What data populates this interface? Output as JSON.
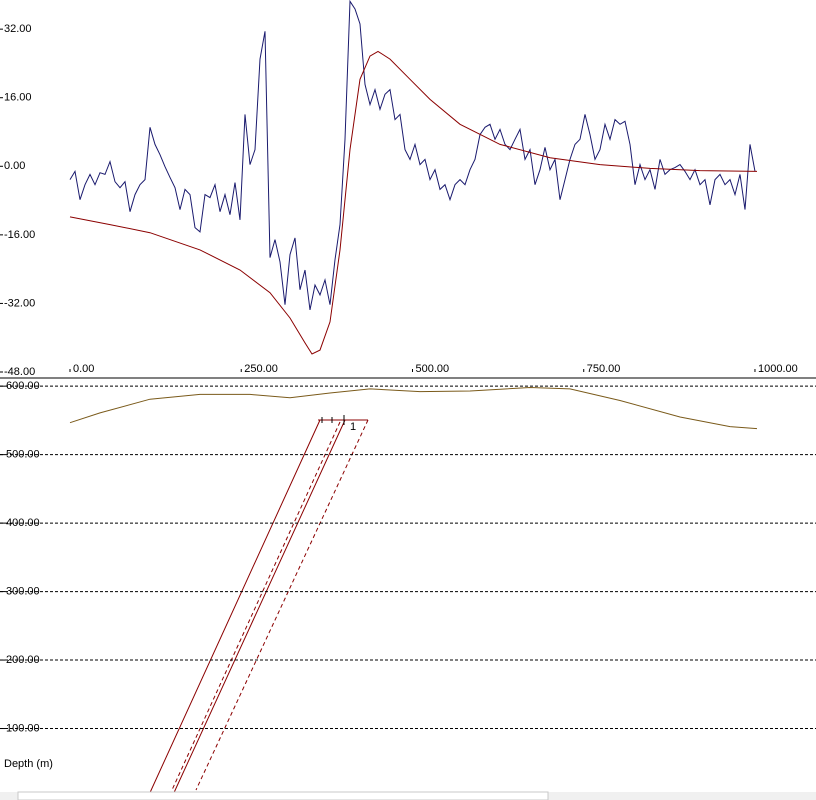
{
  "chart_data": [
    {
      "type": "line",
      "xlim": [
        -102.2,
        1089.1
      ],
      "ylim": [
        -48,
        38.8
      ],
      "xticks": [
        {
          "value": 0,
          "label": "0.00"
        },
        {
          "value": 250,
          "label": "250.00"
        },
        {
          "value": 500,
          "label": "500.00"
        },
        {
          "value": 750,
          "label": "750.00"
        },
        {
          "value": 1000,
          "label": "1000.00"
        }
      ],
      "yticks": [
        {
          "value": 32,
          "label": "32.00"
        },
        {
          "value": 16,
          "label": "16.00"
        },
        {
          "value": 0,
          "label": "0.00"
        },
        {
          "value": -16,
          "label": "-16.00"
        },
        {
          "value": -32,
          "label": "-32.00"
        },
        {
          "value": -48,
          "label": "-48.00"
        }
      ],
      "series": [
        {
          "color": "#1a1a6e",
          "x": [
            0,
            7.3,
            14.6,
            21.9,
            29.2,
            36.5,
            43.8,
            51.1,
            58.4,
            65.7,
            73,
            80.3,
            87.6,
            94.9,
            102.2,
            109.5,
            116.8,
            124.1,
            131.4,
            138.7,
            146,
            153.3,
            160.6,
            167.9,
            175.2,
            182.5,
            189.8,
            197.1,
            204.4,
            211.7,
            219,
            226.3,
            233.6,
            240.9,
            248.2,
            255.5,
            262.8,
            270.1,
            277.4,
            284.7,
            292,
            299.3,
            306.6,
            313.9,
            321.2,
            328.5,
            335.8,
            343.1,
            350.4,
            357.7,
            365,
            372.3,
            379.6,
            386.9,
            394.2,
            401.5,
            408.8,
            416.1,
            423.4,
            430.7,
            438,
            445.3,
            452.6,
            459.9,
            467.2,
            474.5,
            481.8,
            489.1,
            496.4,
            503.7,
            511,
            518.3,
            525.6,
            532.9,
            540.2,
            547.5,
            554.8,
            562.1,
            569.4,
            576.7,
            584,
            591.3,
            598.6,
            605.9,
            613.2,
            620.5,
            627.8,
            635.1,
            642.4,
            649.7,
            657,
            664.3,
            671.6,
            678.9,
            686.2,
            693.5,
            700.8,
            708.1,
            715.4,
            722.7,
            730,
            737.3,
            744.6,
            751.9,
            759.2,
            766.5,
            773.8,
            781.1,
            788.4,
            795.7,
            803,
            810.3,
            817.6,
            824.9,
            832.2,
            839.5,
            846.8,
            854.1,
            861.4,
            868.7,
            876,
            883.3,
            890.6,
            897.9,
            905.2,
            912.5,
            919.8,
            927.1,
            934.4,
            941.7,
            949,
            956.3,
            963.6,
            970.9,
            978.2,
            985.5,
            992.8,
            1000.1
          ],
          "values": [
            -3.1,
            -1.2,
            -7.8,
            -4.3,
            -1.9,
            -4.3,
            -1.5,
            -1.9,
            1.1,
            -3.6,
            -5.0,
            -3.6,
            -10.6,
            -6.6,
            -4.3,
            -3.1,
            9.1,
            5.1,
            2.7,
            -0.1,
            -2.6,
            -5.0,
            -10.1,
            -5.4,
            -6.6,
            -14.3,
            -15.3,
            -6.6,
            -7.3,
            -4.3,
            -10.6,
            -6.6,
            -11.3,
            -3.8,
            -12.5,
            12.1,
            0.4,
            3.9,
            25.0,
            31.5,
            -21.3,
            -17.1,
            -22.3,
            -32.3,
            -20.6,
            -16.7,
            -28.8,
            -24.2,
            -33.5,
            -27.7,
            -30.0,
            -26.5,
            -32.3,
            -21.8,
            -13.6,
            6.3,
            38.5,
            36.7,
            33.2,
            19.1,
            14.4,
            17.9,
            13.3,
            16.8,
            17.9,
            10.9,
            12.1,
            3.9,
            1.6,
            5.1,
            0.4,
            1.6,
            -3.1,
            -0.8,
            -5.4,
            -4.3,
            -7.8,
            -4.3,
            -3.1,
            -4.3,
            -0.8,
            1.6,
            7.4,
            9.1,
            9.8,
            6.3,
            8.6,
            5.1,
            3.9,
            6.3,
            8.6,
            1.6,
            3.9,
            -4.3,
            -0.8,
            4.4,
            -0.8,
            1.6,
            -7.8,
            -3.1,
            1.6,
            5.1,
            6.3,
            12.1,
            7.4,
            1.6,
            3.9,
            9.8,
            6.3,
            10.9,
            9.8,
            10.5,
            5.1,
            -4.3,
            0.4,
            -3.1,
            -0.8,
            -5.4,
            1.6,
            -1.9,
            -0.8,
            -0.3,
            0.4,
            -1.2,
            -3.1,
            -0.8,
            -4.3,
            -3.1,
            -9.0,
            -3.1,
            -1.9,
            -4.3,
            -3.1,
            -6.6,
            -1.9,
            -10.1,
            5.1,
            -1.2
          ]
        },
        {
          "color": "#8b0000",
          "x": [
            0,
            58.4,
            116.8,
            189.8,
            248.2,
            292,
            321.2,
            343.1,
            353.3,
            365,
            379.6,
            394.2,
            408.8,
            423.4,
            438,
            449.6,
            467.2,
            496.4,
            525.6,
            569.4,
            627.7,
            700.7,
            773.7,
            846.7,
            919.7,
            1002.9
          ],
          "values": [
            -11.8,
            -13.6,
            -15.5,
            -19.5,
            -24.2,
            -29.5,
            -35.4,
            -41.2,
            -43.8,
            -42.9,
            -36.3,
            -19.5,
            3.9,
            20.3,
            25.7,
            26.8,
            25.0,
            20.3,
            15.6,
            9.8,
            5.1,
            2.0,
            0.4,
            -0.5,
            -1.0,
            -1.2
          ]
        }
      ]
    },
    {
      "type": "section",
      "ylabel": "Depth (m)",
      "body_label": "1",
      "xlim": [
        -102.2,
        1089.1
      ],
      "ylim": [
        0,
        609
      ],
      "yticks": [
        {
          "value": 600,
          "label": "600.00"
        },
        {
          "value": 500,
          "label": "500.00"
        },
        {
          "value": 400,
          "label": "400.00"
        },
        {
          "value": 300,
          "label": "300.00"
        },
        {
          "value": 200,
          "label": "200.00"
        },
        {
          "value": 100,
          "label": "100.00"
        }
      ],
      "series": [
        {
          "color": "#7a5a1a",
          "x": [
            0,
            43.8,
            116.8,
            189.8,
            262.8,
            321.2,
            379.6,
            438,
            511,
            584,
            671.6,
            730,
            803,
            890.6,
            963.6,
            1003
          ],
          "values": [
            546.6,
            561,
            581,
            588,
            588,
            583,
            590,
            596,
            592,
            593,
            598,
            596,
            579,
            555,
            541,
            538
          ]
        }
      ]
    }
  ]
}
